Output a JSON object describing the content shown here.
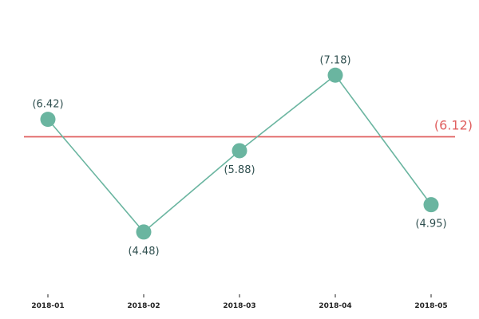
{
  "chart_data": {
    "type": "line",
    "title": "",
    "xlabel": "",
    "ylabel": "",
    "categories": [
      "2018-01",
      "2018-02",
      "2018-03",
      "2018-04",
      "2018-05"
    ],
    "series": [
      {
        "values": [
          6.42,
          4.48,
          5.88,
          7.18,
          4.95
        ],
        "labels": [
          "(6.42)",
          "(4.48)",
          "(5.88)",
          "(7.18)",
          "(4.95)"
        ],
        "color": "#6ab5a0"
      }
    ],
    "reference_line": {
      "value": 6.12,
      "label": "(6.12)",
      "color": "#e06060"
    },
    "ylim": [
      3.6,
      8.2
    ],
    "grid": false,
    "legend": "none",
    "label_color": "#2f4f4f"
  }
}
